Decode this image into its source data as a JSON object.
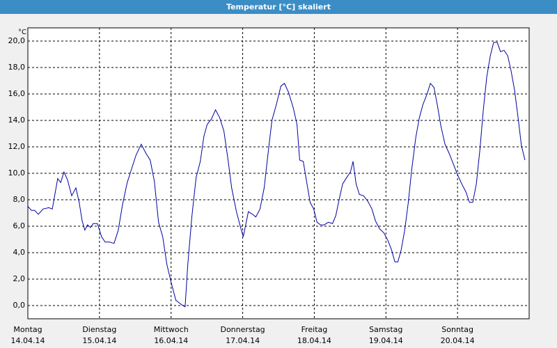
{
  "chart_data": {
    "type": "line",
    "title": "Temperatur [°C] skaliert",
    "y_unit": "°C",
    "x": [
      0,
      1.2,
      2.3,
      3.5,
      5.1,
      7.0,
      8.2,
      10.0,
      11.0,
      12.1,
      13.3,
      14.7,
      16.1,
      17.2,
      18.2,
      19.1,
      20.0,
      21.0,
      21.9,
      23.3,
      24.7,
      25.9,
      27.3,
      28.9,
      30.3,
      31.7,
      33.3,
      35.0,
      36.3,
      38.0,
      39.6,
      41.0,
      42.4,
      43.8,
      45.2,
      46.6,
      48.2,
      49.6,
      51.3,
      52.7,
      53.6,
      55.0,
      56.4,
      57.8,
      59.0,
      60.1,
      61.5,
      62.9,
      64.3,
      65.7,
      67.1,
      68.3,
      69.9,
      71.3,
      72.2,
      73.9,
      75.3,
      76.4,
      77.8,
      79.2,
      80.4,
      81.8,
      83.4,
      84.8,
      86.0,
      87.4,
      89.0,
      90.2,
      91.1,
      92.3,
      93.4,
      94.6,
      95.8,
      96.9,
      98.1,
      99.3,
      100.7,
      102.1,
      103.2,
      104.4,
      105.5,
      106.9,
      108.1,
      109.0,
      110.0,
      111.1,
      112.5,
      113.9,
      115.3,
      116.5,
      117.9,
      119.3,
      120.7,
      121.9,
      123.0,
      124.0,
      125.1,
      126.3,
      127.5,
      128.6,
      130.0,
      131.2,
      132.4,
      133.8,
      134.9,
      136.1,
      137.2,
      138.4,
      139.8,
      141.2,
      142.6,
      144.0,
      145.4,
      146.8,
      148.0,
      149.1,
      150.3,
      151.5,
      152.6,
      153.8,
      155.0,
      156.1,
      157.3,
      158.4,
      159.6,
      160.8,
      161.9,
      163.1,
      164.3,
      165.4,
      166.6
    ],
    "values": [
      7.5,
      7.2,
      7.2,
      6.9,
      7.3,
      7.4,
      7.3,
      9.6,
      9.3,
      10.1,
      9.5,
      8.3,
      8.9,
      7.8,
      6.4,
      5.7,
      6.1,
      5.9,
      6.2,
      6.2,
      5.2,
      4.8,
      4.8,
      4.7,
      5.7,
      7.6,
      9.3,
      10.5,
      11.4,
      12.2,
      11.5,
      11.0,
      9.4,
      6.3,
      5.2,
      3.1,
      1.6,
      0.4,
      0.1,
      -0.1,
      3.1,
      6.8,
      9.7,
      10.9,
      12.8,
      13.7,
      14.1,
      14.8,
      14.2,
      13.2,
      11.0,
      8.9,
      7.1,
      5.9,
      5.2,
      7.1,
      6.9,
      6.7,
      7.3,
      8.9,
      11.3,
      14.0,
      15.3,
      16.6,
      16.8,
      16.1,
      14.9,
      13.7,
      11.0,
      10.9,
      9.4,
      7.8,
      7.3,
      6.3,
      6.1,
      6.1,
      6.3,
      6.2,
      6.8,
      8.1,
      9.2,
      9.7,
      10.1,
      10.9,
      9.2,
      8.4,
      8.3,
      7.9,
      7.3,
      6.4,
      5.8,
      5.5,
      4.9,
      4.2,
      3.3,
      3.3,
      4.2,
      5.7,
      7.8,
      10.2,
      12.7,
      14.2,
      15.2,
      16.0,
      16.8,
      16.5,
      15.2,
      13.6,
      12.2,
      11.5,
      10.7,
      9.9,
      9.2,
      8.6,
      7.8,
      7.8,
      9.2,
      11.8,
      14.7,
      17.3,
      18.9,
      19.9,
      19.9,
      19.2,
      19.3,
      18.9,
      17.8,
      16.3,
      14.2,
      12.1,
      11.0
    ],
    "color": "#0000a0",
    "xlim": [
      0,
      168
    ],
    "xticks": [
      {
        "value": 0,
        "label": "Montag"
      },
      {
        "value": 24,
        "label": "Dienstag"
      },
      {
        "value": 48,
        "label": "Mittwoch"
      },
      {
        "value": 72,
        "label": "Donnerstag"
      },
      {
        "value": 96,
        "label": "Freitag"
      },
      {
        "value": 120,
        "label": "Samstag"
      },
      {
        "value": 144,
        "label": "Sonntag"
      }
    ],
    "xtick_dates": [
      "14.04.14",
      "15.04.14",
      "16.04.14",
      "17.04.14",
      "18.04.14",
      "19.04.14",
      "20.04.14"
    ],
    "ylim": [
      -1,
      21
    ],
    "yticks": [
      {
        "value": 0,
        "label": "0,0"
      },
      {
        "value": 2,
        "label": "2,0"
      },
      {
        "value": 4,
        "label": "4,0"
      },
      {
        "value": 6,
        "label": "6,0"
      },
      {
        "value": 8,
        "label": "8,0"
      },
      {
        "value": 10,
        "label": "10,0"
      },
      {
        "value": 12,
        "label": "12,0"
      },
      {
        "value": 14,
        "label": "14,0"
      },
      {
        "value": 16,
        "label": "16,0"
      },
      {
        "value": 18,
        "label": "18,0"
      },
      {
        "value": 20,
        "label": "20,0"
      }
    ],
    "grid": true
  }
}
